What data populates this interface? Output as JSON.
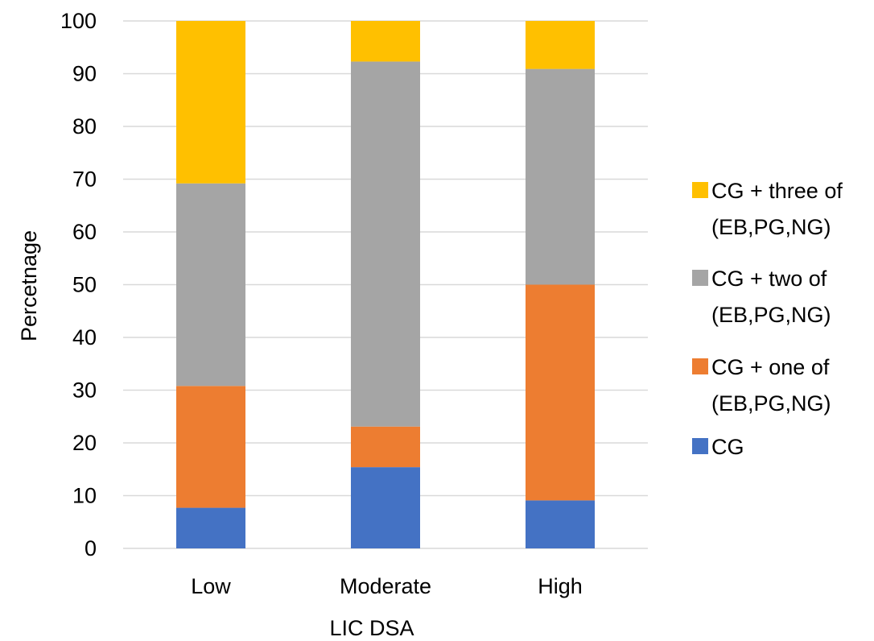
{
  "chart_data": {
    "type": "bar",
    "stacked": true,
    "categories": [
      "Low",
      "Moderate",
      "High"
    ],
    "series": [
      {
        "name": "CG",
        "color": "#4472C4",
        "values": [
          7.7,
          15.4,
          9.1
        ]
      },
      {
        "name": "CG + one of (EB,PG,NG)",
        "color": "#ED7D31",
        "values": [
          23.1,
          7.7,
          40.9
        ]
      },
      {
        "name": "CG + two of (EB,PG,NG)",
        "color": "#A5A5A5",
        "values": [
          38.4,
          69.2,
          40.9
        ]
      },
      {
        "name": "CG + three of (EB,PG,NG)",
        "color": "#FFC000",
        "values": [
          30.8,
          7.7,
          9.1
        ]
      }
    ],
    "legend_lines": [
      [
        "CG"
      ],
      [
        "CG + one of",
        "(EB,PG,NG)"
      ],
      [
        "CG + two of",
        "(EB,PG,NG)"
      ],
      [
        "CG + three of",
        "(EB,PG,NG)"
      ]
    ],
    "title": "",
    "xlabel": "LIC DSA",
    "ylabel": "Percetnage",
    "ylim": [
      0,
      100
    ],
    "yticks": [
      0,
      10,
      20,
      30,
      40,
      50,
      60,
      70,
      80,
      90,
      100
    ],
    "grid": true,
    "legend_position": "right",
    "gridline_color": "#D9D9D9"
  }
}
